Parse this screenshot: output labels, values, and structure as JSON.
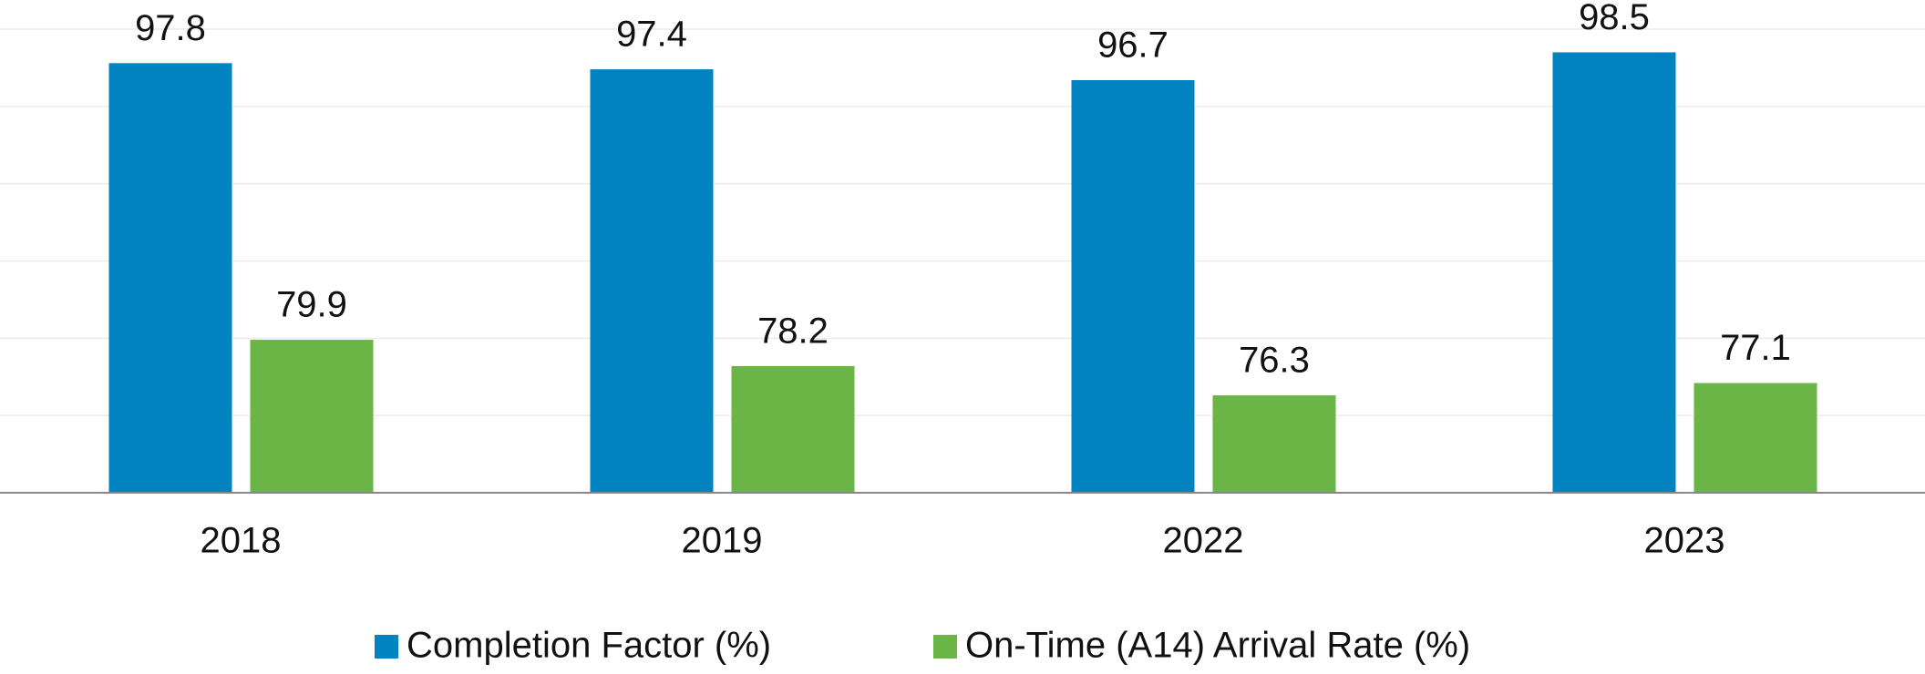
{
  "chart_data": {
    "type": "bar",
    "categories": [
      "2018",
      "2019",
      "2022",
      "2023"
    ],
    "series": [
      {
        "name": "Completion Factor (%)",
        "color": "#0083be",
        "values": [
          97.8,
          97.4,
          96.7,
          98.5
        ]
      },
      {
        "name": "On-Time (A14) Arrival Rate (%)",
        "color": "#6ab545",
        "values": [
          79.9,
          78.2,
          76.3,
          77.1
        ]
      }
    ],
    "ylim": [
      70,
      100
    ],
    "yticks": [
      70,
      75,
      80,
      85,
      90,
      95,
      100
    ],
    "grid": true,
    "legend": "bottom"
  }
}
